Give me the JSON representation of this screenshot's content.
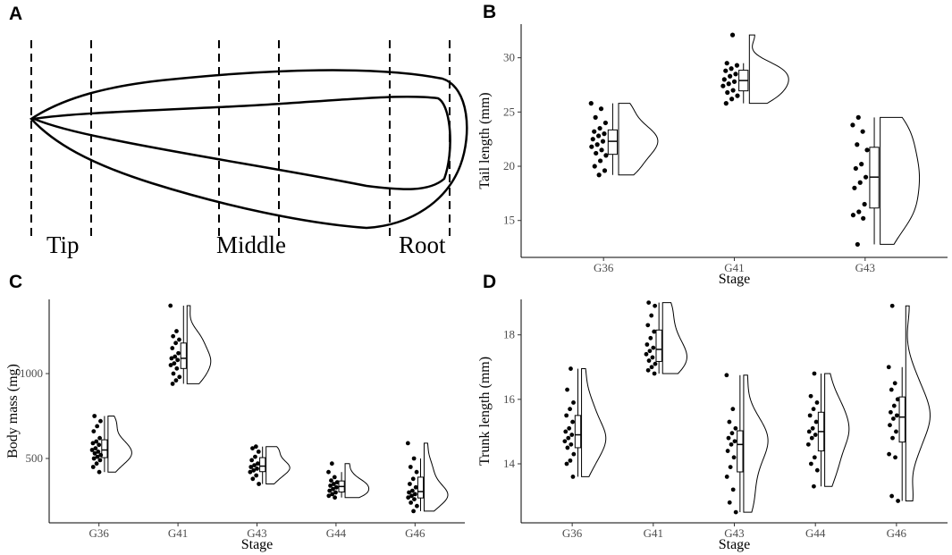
{
  "diagram": {
    "panel_label": "A",
    "labels": [
      "Tip",
      "Middle",
      "Root"
    ]
  },
  "chart_data": [
    {
      "type": "raincloud",
      "panel_label": "B",
      "ylabel": "Tail length (mm)",
      "xlabel": "Stage",
      "categories": [
        "G36",
        "G41",
        "G43"
      ],
      "color": "#000000",
      "ylim": [
        11.6,
        33.1
      ],
      "yticks": [
        15,
        20,
        25,
        30
      ],
      "values": [
        [
          25.8,
          25.3,
          24.5,
          24.0,
          23.5,
          23.2,
          23.0,
          22.8,
          22.5,
          22.3,
          22.0,
          21.8,
          21.5,
          21.2,
          21.0,
          20.5,
          20.0,
          19.6,
          19.2
        ],
        [
          32.1,
          29.5,
          29.3,
          29.0,
          28.8,
          28.5,
          28.3,
          28.0,
          27.8,
          27.6,
          27.4,
          27.0,
          26.8,
          26.5,
          26.2,
          25.8
        ],
        [
          24.5,
          23.8,
          23.2,
          22.0,
          21.5,
          20.2,
          19.8,
          19.0,
          18.5,
          18.0,
          16.5,
          15.8,
          15.5,
          15.2,
          12.8
        ]
      ]
    },
    {
      "type": "raincloud",
      "panel_label": "C",
      "ylabel": "Body mass (mg)",
      "xlabel": "Stage",
      "categories": [
        "G36",
        "G41",
        "G43",
        "G44",
        "G46"
      ],
      "color": "#000000",
      "ylim": [
        121,
        1437
      ],
      "yticks": [
        500,
        1000
      ],
      "values": [
        [
          750,
          720,
          690,
          660,
          620,
          600,
          590,
          580,
          560,
          550,
          540,
          530,
          520,
          510,
          500,
          490,
          470,
          450,
          420
        ],
        [
          1400,
          1250,
          1220,
          1200,
          1180,
          1150,
          1120,
          1100,
          1090,
          1080,
          1060,
          1050,
          1030,
          1000,
          980,
          960,
          940
        ],
        [
          570,
          560,
          540,
          510,
          490,
          470,
          460,
          450,
          440,
          430,
          420,
          400,
          380,
          350
        ],
        [
          470,
          420,
          390,
          370,
          360,
          350,
          340,
          330,
          320,
          310,
          300,
          290,
          280,
          270
        ],
        [
          590,
          500,
          450,
          420,
          380,
          350,
          330,
          310,
          300,
          290,
          280,
          270,
          260,
          240,
          220,
          190
        ]
      ]
    },
    {
      "type": "raincloud",
      "panel_label": "D",
      "ylabel": "Trunk length (mm)",
      "xlabel": "Stage",
      "categories": [
        "G36",
        "G41",
        "G43",
        "G44",
        "G46"
      ],
      "color": "#000000",
      "ylim": [
        12.17,
        19.1
      ],
      "yticks": [
        14,
        16,
        18
      ],
      "values": [
        [
          16.95,
          16.3,
          15.9,
          15.7,
          15.5,
          15.3,
          15.1,
          15.0,
          14.9,
          14.8,
          14.7,
          14.6,
          14.5,
          14.3,
          14.1,
          14.0,
          13.6
        ],
        [
          19.0,
          18.9,
          18.6,
          18.3,
          18.1,
          17.9,
          17.7,
          17.6,
          17.5,
          17.4,
          17.3,
          17.2,
          17.1,
          17.0,
          16.9,
          16.8
        ],
        [
          16.75,
          15.7,
          15.3,
          15.1,
          14.95,
          14.8,
          14.7,
          14.6,
          14.4,
          14.2,
          13.9,
          13.6,
          13.2,
          12.8,
          12.5
        ],
        [
          16.8,
          16.1,
          15.9,
          15.7,
          15.5,
          15.3,
          15.1,
          15.0,
          14.9,
          14.8,
          14.6,
          14.2,
          14.0,
          13.8,
          13.3
        ],
        [
          18.9,
          17.0,
          16.5,
          16.3,
          16.0,
          15.8,
          15.6,
          15.5,
          15.4,
          15.2,
          15.0,
          14.8,
          14.3,
          14.2,
          13.0,
          12.85
        ]
      ]
    }
  ]
}
